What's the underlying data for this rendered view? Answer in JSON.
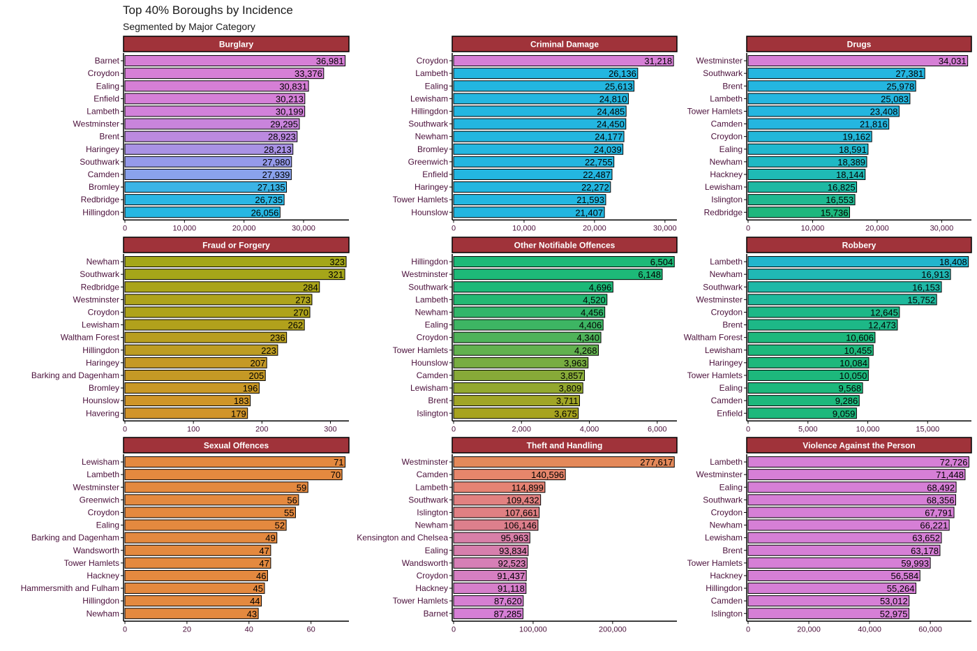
{
  "title": "Top 40% Boroughs by Incidence",
  "subtitle": "Segmented by Major Category",
  "colors": {
    "strip_fill": "#a0333a",
    "strip_border": "#000000",
    "axis": "#000000",
    "bar_border": "#000000"
  },
  "chart_data": [
    {
      "type": "bar",
      "orientation": "horizontal",
      "panel_title": "Burglary",
      "categories": [
        "Barnet",
        "Croydon",
        "Ealing",
        "Enfield",
        "Lambeth",
        "Westminster",
        "Brent",
        "Haringey",
        "Southwark",
        "Camden",
        "Bromley",
        "Redbridge",
        "Hillingdon"
      ],
      "values": [
        36981,
        33376,
        30831,
        30213,
        30199,
        29295,
        28923,
        28213,
        27980,
        27939,
        27135,
        26735,
        26056
      ],
      "value_labels": [
        "36,981",
        "33,376",
        "30,831",
        "30,213",
        "30,199",
        "29,295",
        "28,923",
        "28,213",
        "27,980",
        "27,939",
        "27,135",
        "26,735",
        "26,056"
      ],
      "bar_colors": [
        "#d67fd6",
        "#d67fd6",
        "#d67fd6",
        "#d580d8",
        "#d281da",
        "#c984dc",
        "#bc8ae0",
        "#a992e5",
        "#959aea",
        "#8aa2ec",
        "#3bb4e6",
        "#2ab6e4",
        "#26b7e2"
      ],
      "xticks": [
        0,
        10000,
        20000,
        30000
      ],
      "xtick_labels": [
        "0",
        "10,000",
        "20,000",
        "30,000"
      ],
      "xlim": [
        0,
        37500
      ]
    },
    {
      "type": "bar",
      "orientation": "horizontal",
      "panel_title": "Criminal Damage",
      "categories": [
        "Croydon",
        "Lambeth",
        "Ealing",
        "Lewisham",
        "Hillingdon",
        "Southwark",
        "Newham",
        "Bromley",
        "Greenwich",
        "Enfield",
        "Haringey",
        "Tower Hamlets",
        "Hounslow"
      ],
      "values": [
        31218,
        26136,
        25613,
        24810,
        24485,
        24450,
        24177,
        24039,
        22755,
        22487,
        22272,
        21593,
        21407
      ],
      "value_labels": [
        "31,218",
        "26,136",
        "25,613",
        "24,810",
        "24,485",
        "24,450",
        "24,177",
        "24,039",
        "22,755",
        "22,487",
        "22,272",
        "21,593",
        "21,407"
      ],
      "bar_colors": [
        "#d67fd6",
        "#23b6e0",
        "#23b6e0",
        "#23b6e0",
        "#23b6e0",
        "#23b6e0",
        "#23b6e0",
        "#23b6e0",
        "#23b6e0",
        "#23b6e0",
        "#23b6e0",
        "#23b6e0",
        "#23b6e0"
      ],
      "xticks": [
        0,
        10000,
        20000,
        30000
      ],
      "xtick_labels": [
        "0",
        "10,000",
        "20,000",
        "30,000"
      ],
      "xlim": [
        0,
        31600
      ]
    },
    {
      "type": "bar",
      "orientation": "horizontal",
      "panel_title": "Drugs",
      "categories": [
        "Westminster",
        "Southwark",
        "Brent",
        "Lambeth",
        "Tower Hamlets",
        "Camden",
        "Croydon",
        "Ealing",
        "Newham",
        "Hackney",
        "Lewisham",
        "Islington",
        "Redbridge"
      ],
      "values": [
        34031,
        27381,
        25978,
        25083,
        23408,
        21816,
        19162,
        18591,
        18389,
        18144,
        16825,
        16553,
        15736
      ],
      "value_labels": [
        "34,031",
        "27,381",
        "25,978",
        "25,083",
        "23,408",
        "21,816",
        "19,162",
        "18,591",
        "18,389",
        "18,144",
        "16,825",
        "16,553",
        "15,736"
      ],
      "bar_colors": [
        "#d67fd6",
        "#24b6e0",
        "#24b6e0",
        "#24b6e0",
        "#24b6e0",
        "#24b6e0",
        "#22b7da",
        "#20b8cf",
        "#1fb9c4",
        "#1fbab5",
        "#1fb9a3",
        "#1fb890",
        "#1eb77d"
      ],
      "xticks": [
        0,
        10000,
        20000,
        30000
      ],
      "xtick_labels": [
        "0",
        "10,000",
        "20,000",
        "30,000"
      ],
      "xlim": [
        0,
        34500
      ]
    },
    {
      "type": "bar",
      "orientation": "horizontal",
      "panel_title": "Fraud or Forgery",
      "categories": [
        "Newham",
        "Southwark",
        "Redbridge",
        "Westminster",
        "Croydon",
        "Lewisham",
        "Waltham Forest",
        "Hillingdon",
        "Haringey",
        "Barking and Dagenham",
        "Bromley",
        "Hounslow",
        "Havering"
      ],
      "values": [
        323,
        321,
        284,
        273,
        270,
        262,
        236,
        223,
        207,
        205,
        196,
        183,
        179
      ],
      "value_labels": [
        "323",
        "321",
        "284",
        "273",
        "270",
        "262",
        "236",
        "223",
        "207",
        "205",
        "196",
        "183",
        "179"
      ],
      "bar_colors": [
        "#a4a719",
        "#a5a619",
        "#aaa41a",
        "#aea31b",
        "#aea31b",
        "#b1a11c",
        "#b89e20",
        "#bd9c22",
        "#c59925",
        "#c59925",
        "#c99826",
        "#cf9528",
        "#d1942a"
      ],
      "xticks": [
        0,
        100,
        200,
        300
      ],
      "xtick_labels": [
        "0",
        "100",
        "200",
        "300"
      ],
      "xlim": [
        0,
        326
      ]
    },
    {
      "type": "bar",
      "orientation": "horizontal",
      "panel_title": "Other Notifiable Offences",
      "categories": [
        "Hillingdon",
        "Westminster",
        "Southwark",
        "Lambeth",
        "Newham",
        "Ealing",
        "Croydon",
        "Tower Hamlets",
        "Hounslow",
        "Camden",
        "Lewisham",
        "Brent",
        "Islington"
      ],
      "values": [
        6504,
        6148,
        4696,
        4520,
        4456,
        4406,
        4340,
        4268,
        3963,
        3857,
        3809,
        3711,
        3675
      ],
      "value_labels": [
        "6,504",
        "6,148",
        "4,696",
        "4,520",
        "4,456",
        "4,406",
        "4,340",
        "4,268",
        "3,963",
        "3,857",
        "3,809",
        "3,711",
        "3,675"
      ],
      "bar_colors": [
        "#1db978",
        "#1db978",
        "#1db978",
        "#23b873",
        "#31b66a",
        "#3db563",
        "#4fb35a",
        "#62b14f",
        "#78ad42",
        "#87aa38",
        "#93a82f",
        "#a0a526",
        "#a7a31f"
      ],
      "xticks": [
        0,
        2000,
        4000,
        6000
      ],
      "xtick_labels": [
        "0",
        "2,000",
        "4,000",
        "6,000"
      ],
      "xlim": [
        0,
        6560
      ]
    },
    {
      "type": "bar",
      "orientation": "horizontal",
      "panel_title": "Robbery",
      "categories": [
        "Lambeth",
        "Newham",
        "Southwark",
        "Westminster",
        "Croydon",
        "Brent",
        "Waltham Forest",
        "Lewisham",
        "Haringey",
        "Tower Hamlets",
        "Ealing",
        "Camden",
        "Enfield"
      ],
      "values": [
        18408,
        16913,
        16153,
        15752,
        12645,
        12473,
        10606,
        10455,
        10084,
        10050,
        9568,
        9286,
        9059
      ],
      "value_labels": [
        "18,408",
        "16,913",
        "16,153",
        "15,752",
        "12,645",
        "12,473",
        "10,606",
        "10,455",
        "10,084",
        "10,050",
        "9,568",
        "9,286",
        "9,059"
      ],
      "bar_colors": [
        "#22b5cc",
        "#20b8b4",
        "#1fb9a7",
        "#1eb99c",
        "#1db887",
        "#1db887",
        "#1db87c",
        "#1db87c",
        "#1db87c",
        "#1db87c",
        "#1db87c",
        "#1db87c",
        "#1db87c"
      ],
      "xticks": [
        0,
        5000,
        10000,
        15000
      ],
      "xtick_labels": [
        "0",
        "5,000",
        "10,000",
        "15,000"
      ],
      "xlim": [
        0,
        18600
      ]
    },
    {
      "type": "bar",
      "orientation": "horizontal",
      "panel_title": "Sexual Offences",
      "categories": [
        "Lewisham",
        "Lambeth",
        "Westminster",
        "Greenwich",
        "Croydon",
        "Ealing",
        "Barking and Dagenham",
        "Wandsworth",
        "Tower Hamlets",
        "Hackney",
        "Hammersmith and Fulham",
        "Hillingdon",
        "Newham"
      ],
      "values": [
        71,
        70,
        59,
        56,
        55,
        52,
        49,
        47,
        47,
        46,
        45,
        44,
        43
      ],
      "value_labels": [
        "71",
        "70",
        "59",
        "56",
        "55",
        "52",
        "49",
        "47",
        "47",
        "46",
        "45",
        "44",
        "43"
      ],
      "bar_colors": [
        "#e4893f",
        "#e4893f",
        "#e4893f",
        "#e4893f",
        "#e4893f",
        "#e4893f",
        "#e4893f",
        "#e4893f",
        "#e4893f",
        "#e4893f",
        "#e4893f",
        "#e4893f",
        "#e4893f"
      ],
      "xticks": [
        0,
        20,
        40,
        60
      ],
      "xtick_labels": [
        "0",
        "20",
        "40",
        "60"
      ],
      "xlim": [
        0,
        72
      ]
    },
    {
      "type": "bar",
      "orientation": "horizontal",
      "panel_title": "Theft and Handling",
      "categories": [
        "Westminster",
        "Camden",
        "Lambeth",
        "Southwark",
        "Islington",
        "Newham",
        "Kensington and Chelsea",
        "Ealing",
        "Wandsworth",
        "Croydon",
        "Hackney",
        "Tower Hamlets",
        "Barnet"
      ],
      "values": [
        277617,
        140596,
        114899,
        109432,
        107661,
        106146,
        95963,
        93834,
        92523,
        91437,
        91118,
        87620,
        87285
      ],
      "value_labels": [
        "277,617",
        "140,596",
        "114,899",
        "109,432",
        "107,661",
        "106,146",
        "95,963",
        "93,834",
        "92,523",
        "91,437",
        "91,118",
        "87,620",
        "87,285"
      ],
      "bar_colors": [
        "#e4895a",
        "#e6866b",
        "#e58374",
        "#e28181",
        "#e08083",
        "#dd7f8c",
        "#d87fa8",
        "#d77fad",
        "#d67fb6",
        "#d67fc2",
        "#d67fcb",
        "#d67fd2",
        "#d67fd6"
      ],
      "xticks": [
        0,
        100000,
        200000
      ],
      "xtick_labels": [
        "0",
        "100,000",
        "200,000"
      ],
      "xlim": [
        0,
        280000
      ]
    },
    {
      "type": "bar",
      "orientation": "horizontal",
      "panel_title": "Violence Against the Person",
      "categories": [
        "Lambeth",
        "Westminster",
        "Ealing",
        "Southwark",
        "Croydon",
        "Newham",
        "Lewisham",
        "Brent",
        "Tower Hamlets",
        "Hackney",
        "Hillingdon",
        "Camden",
        "Islington"
      ],
      "values": [
        72726,
        71448,
        68492,
        68356,
        67791,
        66221,
        63652,
        63178,
        59993,
        56584,
        55264,
        53012,
        52975
      ],
      "value_labels": [
        "72,726",
        "71,448",
        "68,492",
        "68,356",
        "67,791",
        "66,221",
        "63,652",
        "63,178",
        "59,993",
        "56,584",
        "55,264",
        "53,012",
        "52,975"
      ],
      "bar_colors": [
        "#d67fd6",
        "#d67fd6",
        "#d67fd6",
        "#d67fd6",
        "#d67fd6",
        "#d67fd6",
        "#d67fd6",
        "#d67fd6",
        "#d67fd6",
        "#d67fd6",
        "#d67fd6",
        "#d67fd6",
        "#d67fd6"
      ],
      "xticks": [
        0,
        20000,
        40000,
        60000
      ],
      "xtick_labels": [
        "0",
        "20,000",
        "40,000",
        "60,000"
      ],
      "xlim": [
        0,
        73300
      ]
    }
  ]
}
